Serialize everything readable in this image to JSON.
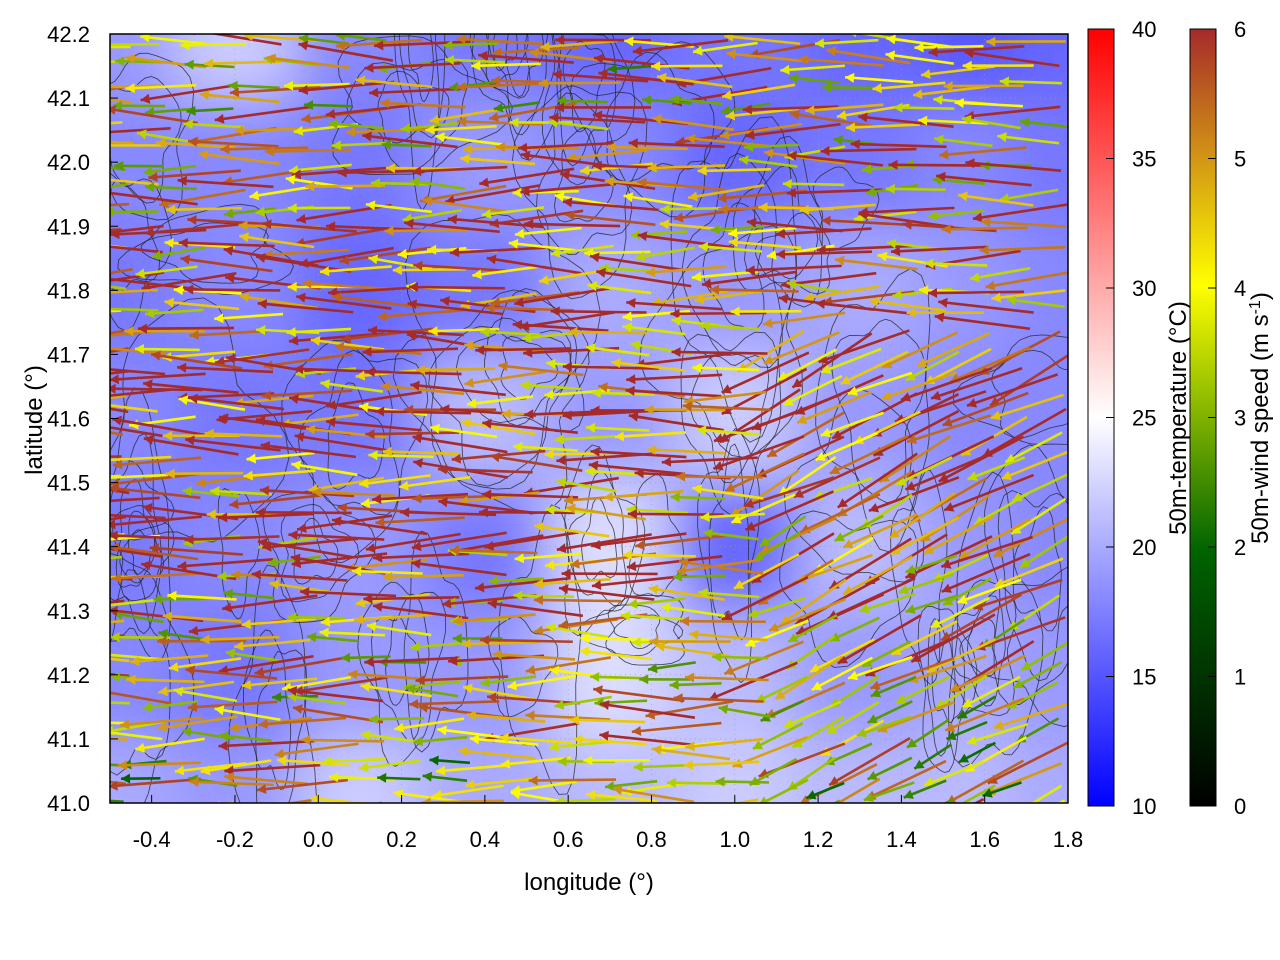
{
  "chart_data": {
    "type": "heatmap",
    "title": "",
    "xlabel": "longitude (°)",
    "ylabel": "latitude (°)",
    "xlim": [
      -0.5,
      1.8
    ],
    "ylim": [
      41.0,
      42.2
    ],
    "x_ticks": [
      "-0.4",
      "-0.2",
      "0.0",
      "0.2",
      "0.4",
      "0.6",
      "0.8",
      "1.0",
      "1.2",
      "1.4",
      "1.6",
      "1.8"
    ],
    "x_tick_values": [
      -0.4,
      -0.2,
      0.0,
      0.2,
      0.4,
      0.6,
      0.8,
      1.0,
      1.2,
      1.4,
      1.6,
      1.8
    ],
    "y_ticks": [
      "41.0",
      "41.1",
      "41.2",
      "41.3",
      "41.4",
      "41.5",
      "41.6",
      "41.7",
      "41.8",
      "41.9",
      "42.0",
      "42.1",
      "42.2"
    ],
    "y_tick_values": [
      41.0,
      41.1,
      41.2,
      41.3,
      41.4,
      41.5,
      41.6,
      41.7,
      41.8,
      41.9,
      42.0,
      42.1,
      42.2
    ],
    "grid": true,
    "temperature_colorbar": {
      "label": "50m-temperature (°C)",
      "range": [
        10,
        40
      ],
      "ticks": [
        "10",
        "15",
        "20",
        "25",
        "30",
        "35",
        "40"
      ],
      "tick_values": [
        10,
        15,
        20,
        25,
        30,
        35,
        40
      ],
      "colors": [
        "#0000ff",
        "#ffffff",
        "#ff0000"
      ]
    },
    "wind_colorbar": {
      "label": "50m-wind speed (m s-1)",
      "range": [
        0,
        6
      ],
      "ticks": [
        "0",
        "1",
        "2",
        "3",
        "4",
        "5",
        "6"
      ],
      "tick_values": [
        0,
        1,
        2,
        3,
        4,
        5,
        6
      ],
      "colors": [
        "#000000",
        "#006400",
        "#ffff00",
        "#a52a2a"
      ]
    },
    "temperature_field": {
      "grid_lon": [
        -0.5,
        -0.2,
        0.1,
        0.4,
        0.7,
        1.0,
        1.3,
        1.6,
        1.8
      ],
      "grid_lat": [
        42.2,
        42.0,
        41.8,
        41.6,
        41.4,
        41.2,
        41.0
      ],
      "values": [
        [
          19,
          22,
          18,
          17,
          16,
          17,
          16,
          15,
          16
        ],
        [
          18,
          18,
          17,
          19,
          18,
          16,
          17,
          18,
          17
        ],
        [
          17,
          18,
          16,
          17,
          20,
          19,
          20,
          19,
          18
        ],
        [
          18,
          17,
          17,
          21,
          19,
          22,
          19,
          18,
          18
        ],
        [
          17,
          18,
          19,
          17,
          23,
          16,
          21,
          19,
          18
        ],
        [
          18,
          17,
          19,
          19,
          23,
          21,
          19,
          20,
          19
        ],
        [
          20,
          19,
          22,
          20,
          21,
          22,
          21,
          21,
          20
        ]
      ]
    },
    "wind_direction": "predominantly from the east (arrows pointing west)",
    "contours": "black terrain elevation contours"
  }
}
